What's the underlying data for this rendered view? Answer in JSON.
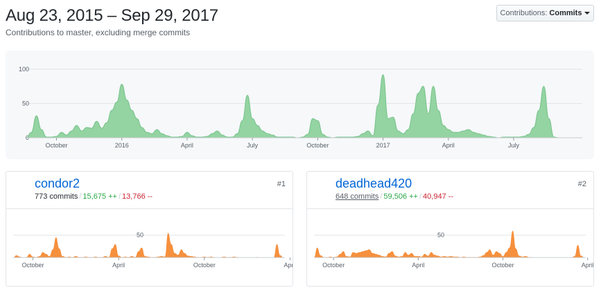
{
  "header": {
    "title": "Aug 23, 2015 – Sep 29, 2017",
    "subtitle": "Contributions to master, excluding merge commits"
  },
  "dropdown": {
    "label": "Contributions:",
    "value": "Commits"
  },
  "colors": {
    "main_area": "#94d3a2",
    "main_stroke": "#77c48b",
    "contrib_area": "#f6903d",
    "grid": "#e1e4e8"
  },
  "chart_data": [
    {
      "type": "area",
      "title": "",
      "y_ticks": [
        0,
        50,
        100
      ],
      "ylim": [
        0,
        115
      ],
      "x_tick_labels": [
        "October",
        "2016",
        "April",
        "July",
        "October",
        "2017",
        "April",
        "July"
      ],
      "x_range_weeks": [
        0,
        109
      ],
      "x_tick_weeks": [
        6,
        19,
        32,
        45,
        58,
        71,
        84,
        97
      ],
      "weekly_commits": [
        [
          0,
          0
        ],
        [
          1,
          8
        ],
        [
          2,
          32
        ],
        [
          3,
          12
        ],
        [
          4,
          1
        ],
        [
          5,
          1
        ],
        [
          6,
          2
        ],
        [
          7,
          8
        ],
        [
          8,
          4
        ],
        [
          9,
          10
        ],
        [
          10,
          18
        ],
        [
          11,
          10
        ],
        [
          12,
          15
        ],
        [
          13,
          14
        ],
        [
          14,
          24
        ],
        [
          15,
          14
        ],
        [
          16,
          22
        ],
        [
          17,
          40
        ],
        [
          18,
          52
        ],
        [
          19,
          78
        ],
        [
          20,
          55
        ],
        [
          21,
          40
        ],
        [
          22,
          28
        ],
        [
          23,
          15
        ],
        [
          24,
          8
        ],
        [
          25,
          6
        ],
        [
          26,
          12
        ],
        [
          27,
          6
        ],
        [
          28,
          3
        ],
        [
          29,
          1
        ],
        [
          30,
          1
        ],
        [
          31,
          2
        ],
        [
          32,
          8
        ],
        [
          33,
          3
        ],
        [
          34,
          1
        ],
        [
          35,
          1
        ],
        [
          36,
          2
        ],
        [
          37,
          6
        ],
        [
          38,
          10
        ],
        [
          39,
          4
        ],
        [
          40,
          1
        ],
        [
          41,
          1
        ],
        [
          42,
          6
        ],
        [
          43,
          25
        ],
        [
          44,
          62
        ],
        [
          45,
          28
        ],
        [
          46,
          18
        ],
        [
          47,
          10
        ],
        [
          48,
          6
        ],
        [
          49,
          4
        ],
        [
          50,
          1
        ],
        [
          51,
          1
        ],
        [
          52,
          1
        ],
        [
          53,
          1
        ],
        [
          54,
          0
        ],
        [
          55,
          1
        ],
        [
          56,
          5
        ],
        [
          57,
          28
        ],
        [
          58,
          25
        ],
        [
          59,
          5
        ],
        [
          60,
          1
        ],
        [
          61,
          0
        ],
        [
          62,
          1
        ],
        [
          63,
          1
        ],
        [
          64,
          1
        ],
        [
          65,
          1
        ],
        [
          66,
          2
        ],
        [
          67,
          6
        ],
        [
          68,
          10
        ],
        [
          69,
          3
        ],
        [
          70,
          48
        ],
        [
          71,
          92
        ],
        [
          72,
          28
        ],
        [
          73,
          30
        ],
        [
          74,
          10
        ],
        [
          75,
          6
        ],
        [
          76,
          12
        ],
        [
          77,
          35
        ],
        [
          78,
          65
        ],
        [
          79,
          75
        ],
        [
          80,
          35
        ],
        [
          81,
          75
        ],
        [
          82,
          40
        ],
        [
          83,
          18
        ],
        [
          84,
          12
        ],
        [
          85,
          8
        ],
        [
          86,
          8
        ],
        [
          87,
          10
        ],
        [
          88,
          12
        ],
        [
          89,
          8
        ],
        [
          90,
          6
        ],
        [
          91,
          4
        ],
        [
          92,
          2
        ],
        [
          93,
          1
        ],
        [
          94,
          0
        ],
        [
          95,
          1
        ],
        [
          96,
          1
        ],
        [
          97,
          1
        ],
        [
          98,
          1
        ],
        [
          99,
          2
        ],
        [
          100,
          5
        ],
        [
          101,
          15
        ],
        [
          102,
          40
        ],
        [
          103,
          75
        ],
        [
          104,
          28
        ],
        [
          105,
          1
        ],
        [
          106,
          0
        ],
        [
          107,
          0
        ],
        [
          108,
          0
        ],
        [
          109,
          0
        ]
      ]
    },
    {
      "type": "area",
      "contributor": "condor2",
      "y_ticks": [
        50
      ],
      "ylim": [
        0,
        65
      ],
      "x_tick_labels": [
        "October",
        "April",
        "October",
        "April"
      ],
      "x_tick_weeks": [
        6,
        32,
        58,
        84
      ],
      "weekly_commits": [
        [
          0,
          0
        ],
        [
          1,
          5
        ],
        [
          2,
          2
        ],
        [
          3,
          0
        ],
        [
          4,
          1
        ],
        [
          5,
          8
        ],
        [
          6,
          2
        ],
        [
          7,
          1
        ],
        [
          8,
          3
        ],
        [
          9,
          12
        ],
        [
          10,
          8
        ],
        [
          11,
          3
        ],
        [
          12,
          18
        ],
        [
          13,
          45
        ],
        [
          14,
          20
        ],
        [
          15,
          3
        ],
        [
          16,
          1
        ],
        [
          17,
          2
        ],
        [
          18,
          1
        ],
        [
          19,
          3
        ],
        [
          20,
          1
        ],
        [
          21,
          1
        ],
        [
          22,
          2
        ],
        [
          23,
          1
        ],
        [
          24,
          1
        ],
        [
          25,
          2
        ],
        [
          26,
          1
        ],
        [
          27,
          1
        ],
        [
          28,
          3
        ],
        [
          29,
          1
        ],
        [
          30,
          20
        ],
        [
          31,
          30
        ],
        [
          32,
          4
        ],
        [
          33,
          1
        ],
        [
          34,
          2
        ],
        [
          35,
          1
        ],
        [
          36,
          3
        ],
        [
          37,
          1
        ],
        [
          38,
          14
        ],
        [
          39,
          22
        ],
        [
          40,
          3
        ],
        [
          41,
          2
        ],
        [
          42,
          1
        ],
        [
          43,
          1
        ],
        [
          44,
          2
        ],
        [
          45,
          3
        ],
        [
          46,
          2
        ],
        [
          47,
          55
        ],
        [
          48,
          30
        ],
        [
          49,
          10
        ],
        [
          50,
          6
        ],
        [
          51,
          18
        ],
        [
          52,
          10
        ],
        [
          53,
          4
        ],
        [
          54,
          3
        ],
        [
          55,
          2
        ],
        [
          56,
          1
        ],
        [
          57,
          1
        ],
        [
          58,
          2
        ],
        [
          59,
          1
        ],
        [
          60,
          2
        ],
        [
          61,
          1
        ],
        [
          62,
          0
        ],
        [
          63,
          1
        ],
        [
          64,
          2
        ],
        [
          65,
          1
        ],
        [
          66,
          1
        ],
        [
          67,
          2
        ],
        [
          68,
          1
        ],
        [
          69,
          0
        ],
        [
          70,
          0
        ],
        [
          71,
          0
        ],
        [
          72,
          0
        ],
        [
          73,
          0
        ],
        [
          74,
          1
        ],
        [
          75,
          0
        ],
        [
          76,
          0
        ],
        [
          77,
          0
        ],
        [
          78,
          0
        ],
        [
          79,
          0
        ],
        [
          80,
          30
        ],
        [
          81,
          5
        ],
        [
          82,
          0
        ]
      ]
    },
    {
      "type": "area",
      "contributor": "deadhead420",
      "y_ticks": [
        50
      ],
      "ylim": [
        0,
        65
      ],
      "x_tick_labels": [
        "October",
        "April",
        "October",
        "April"
      ],
      "x_tick_weeks": [
        6,
        32,
        58,
        84
      ],
      "weekly_commits": [
        [
          0,
          0
        ],
        [
          1,
          22
        ],
        [
          2,
          5
        ],
        [
          3,
          1
        ],
        [
          4,
          1
        ],
        [
          5,
          2
        ],
        [
          6,
          1
        ],
        [
          7,
          2
        ],
        [
          8,
          8
        ],
        [
          9,
          14
        ],
        [
          10,
          3
        ],
        [
          11,
          2
        ],
        [
          12,
          12
        ],
        [
          13,
          10
        ],
        [
          14,
          12
        ],
        [
          15,
          14
        ],
        [
          16,
          16
        ],
        [
          17,
          18
        ],
        [
          18,
          10
        ],
        [
          19,
          8
        ],
        [
          20,
          6
        ],
        [
          21,
          3
        ],
        [
          22,
          2
        ],
        [
          23,
          10
        ],
        [
          24,
          14
        ],
        [
          25,
          4
        ],
        [
          26,
          2
        ],
        [
          27,
          3
        ],
        [
          28,
          12
        ],
        [
          29,
          6
        ],
        [
          30,
          10
        ],
        [
          31,
          3
        ],
        [
          32,
          3
        ],
        [
          33,
          2
        ],
        [
          34,
          8
        ],
        [
          35,
          4
        ],
        [
          36,
          12
        ],
        [
          37,
          6
        ],
        [
          38,
          4
        ],
        [
          39,
          2
        ],
        [
          40,
          3
        ],
        [
          41,
          2
        ],
        [
          42,
          3
        ],
        [
          43,
          2
        ],
        [
          44,
          2
        ],
        [
          45,
          1
        ],
        [
          46,
          2
        ],
        [
          47,
          1
        ],
        [
          48,
          1
        ],
        [
          49,
          1
        ],
        [
          50,
          1
        ],
        [
          51,
          2
        ],
        [
          52,
          5
        ],
        [
          53,
          12
        ],
        [
          54,
          18
        ],
        [
          55,
          6
        ],
        [
          56,
          14
        ],
        [
          57,
          10
        ],
        [
          58,
          3
        ],
        [
          59,
          12
        ],
        [
          60,
          22
        ],
        [
          61,
          60
        ],
        [
          62,
          20
        ],
        [
          63,
          4
        ],
        [
          64,
          2
        ],
        [
          65,
          3
        ],
        [
          66,
          1
        ],
        [
          67,
          1
        ],
        [
          68,
          0
        ],
        [
          69,
          0
        ],
        [
          70,
          0
        ],
        [
          71,
          0
        ],
        [
          72,
          0
        ],
        [
          73,
          0
        ],
        [
          74,
          0
        ],
        [
          75,
          0
        ],
        [
          76,
          0
        ],
        [
          77,
          0
        ],
        [
          78,
          0
        ],
        [
          79,
          0
        ],
        [
          80,
          3
        ],
        [
          81,
          28
        ],
        [
          82,
          4
        ],
        [
          83,
          0
        ]
      ]
    }
  ],
  "contributors": [
    {
      "name": "condor2",
      "commits": "773 commits",
      "additions": "15,675 ++",
      "deletions": "13,766 --",
      "rank": "#1"
    },
    {
      "name": "deadhead420",
      "commits": "648 commits",
      "additions": "59,506 ++",
      "deletions": "40,947 --",
      "rank": "#2"
    }
  ]
}
